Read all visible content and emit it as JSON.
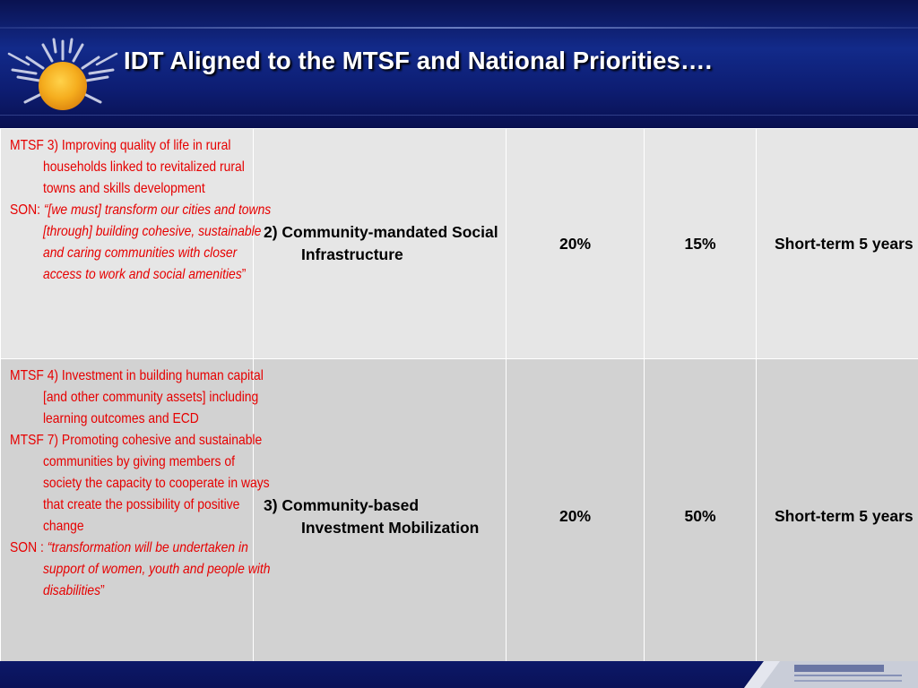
{
  "slide": {
    "title": "IDT Aligned to the MTSF and National Priorities…."
  },
  "rows": [
    {
      "justification": {
        "mtsf_items": [
          "MTSF 3) Improving quality of life in rural households linked to revitalized rural towns and skills development"
        ],
        "son_label": "SON: ",
        "son_quote_open": "“",
        "son_quote": "[we must] transform our cities and towns [through] building cohesive, sustainable and caring communities with closer access to work and social amenities",
        "son_quote_close": "”"
      },
      "objective": "2) Community-mandated Social Infrastructure",
      "percent_a": "20%",
      "percent_b": "15%",
      "term": "Short-term 5 years"
    },
    {
      "justification": {
        "mtsf_items": [
          "MTSF 4) Investment in building human capital [and other community assets] including learning outcomes and ECD",
          "MTSF 7) Promoting cohesive and sustainable communities by giving members of society the capacity to cooperate in ways that create the possibility of positive change"
        ],
        "son_label": "SON : ",
        "son_quote_open": "“",
        "son_quote": "transformation will be undertaken in support of women, youth and people with disabilities",
        "son_quote_close": "”"
      },
      "objective": "3) Community-based Investment Mobilization",
      "percent_a": "20%",
      "percent_b": "50%",
      "term": "Short-term 5 years"
    }
  ],
  "colors": {
    "banner_blue": "#122a8a",
    "justification_red": "#e60000",
    "row_1_fill": "#e6e6e6",
    "row_2_fill": "#d2d2d2",
    "sun_orange": "#f2a81c"
  },
  "icons": {
    "logo": "sun-logo-icon"
  }
}
